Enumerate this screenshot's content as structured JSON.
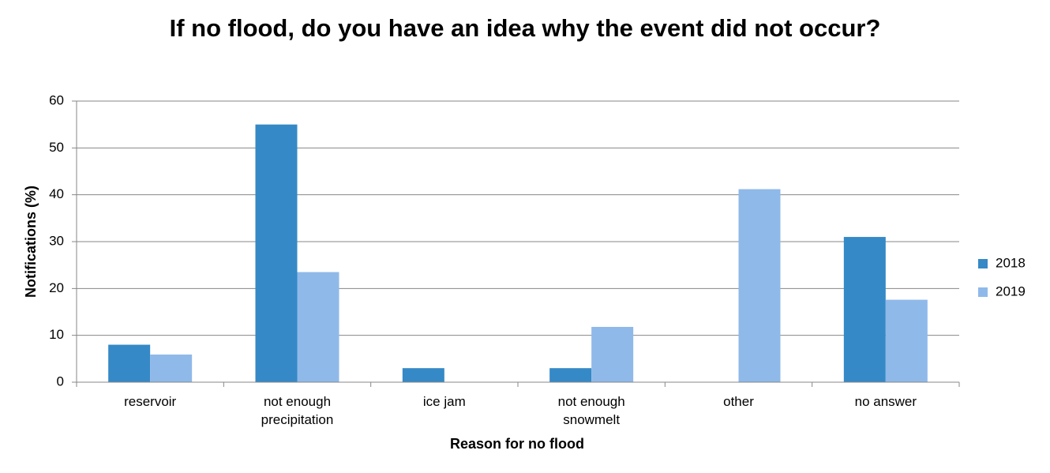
{
  "chart_data": {
    "type": "bar",
    "title": "If no flood, do you have an idea why the event did not occur?",
    "x_label": "Reason for no flood",
    "y_label": "Notifications (%)",
    "categories": [
      "reservoir",
      "not enough precipitation",
      "ice jam",
      "not enough snowmelt",
      "other",
      "no answer"
    ],
    "series": [
      {
        "name": "2018",
        "color": "#3589c6",
        "values": [
          8,
          55,
          3,
          3,
          0,
          31
        ]
      },
      {
        "name": "2019",
        "color": "#8fb9e9",
        "values": [
          5.9,
          23.5,
          0,
          11.8,
          41.2,
          17.6
        ]
      }
    ],
    "ylim": [
      0,
      60
    ],
    "yticks": [
      0,
      10,
      20,
      30,
      40,
      50,
      60
    ],
    "grid": true,
    "legend": "right"
  }
}
